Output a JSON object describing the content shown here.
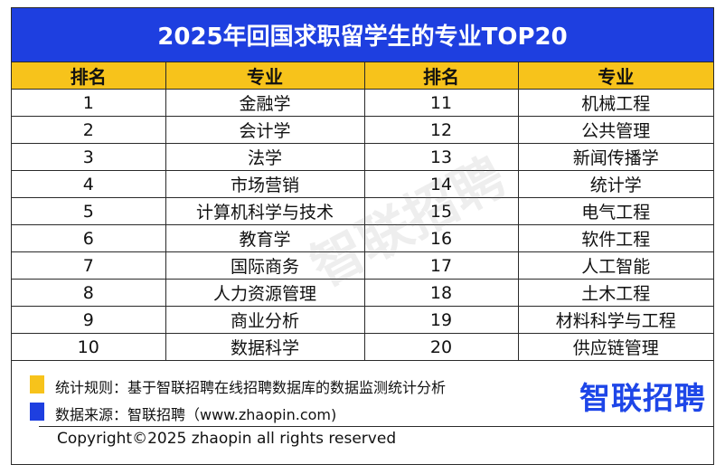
{
  "title": "2025年回国求职留学生的专业TOP20",
  "headers": {
    "rank": "排名",
    "major": "专业"
  },
  "left_rows": [
    {
      "rank": "1",
      "major": "金融学"
    },
    {
      "rank": "2",
      "major": "会计学"
    },
    {
      "rank": "3",
      "major": "法学"
    },
    {
      "rank": "4",
      "major": "市场营销"
    },
    {
      "rank": "5",
      "major": "计算机科学与技术"
    },
    {
      "rank": "6",
      "major": "教育学"
    },
    {
      "rank": "7",
      "major": "国际商务"
    },
    {
      "rank": "8",
      "major": "人力资源管理"
    },
    {
      "rank": "9",
      "major": "商业分析"
    },
    {
      "rank": "10",
      "major": "数据科学"
    }
  ],
  "right_rows": [
    {
      "rank": "11",
      "major": "机械工程"
    },
    {
      "rank": "12",
      "major": "公共管理"
    },
    {
      "rank": "13",
      "major": "新闻传播学"
    },
    {
      "rank": "14",
      "major": "统计学"
    },
    {
      "rank": "15",
      "major": "电气工程"
    },
    {
      "rank": "16",
      "major": "软件工程"
    },
    {
      "rank": "17",
      "major": "人工智能"
    },
    {
      "rank": "18",
      "major": "土木工程"
    },
    {
      "rank": "19",
      "major": "材料科学与工程"
    },
    {
      "rank": "20",
      "major": "供应链管理"
    }
  ],
  "watermark": "智联招聘",
  "legend": {
    "stat_rule": "统计规则：基于智联招聘在线招聘数据库的数据监测统计分析",
    "data_source": "数据来源：智联招聘（www.zhaopin.com)"
  },
  "logo": "智联招聘",
  "copyright": "Copyright©2025 zhaopin all rights reserved",
  "colors": {
    "title_bg": "#1e3fe0",
    "header_bg": "#f7c31b",
    "logo": "#1e46e8"
  }
}
